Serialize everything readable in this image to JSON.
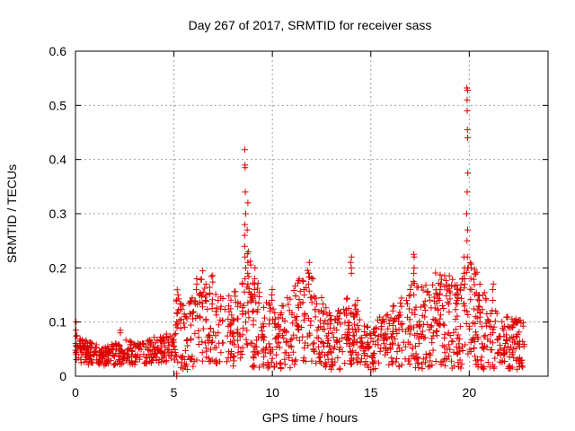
{
  "chart_data": {
    "type": "scatter",
    "title": "Day 267 of 2017, SRMTID for receiver sass",
    "xlabel": "GPS time / hours",
    "ylabel": "SRMTID / TECUs",
    "xlim": [
      0,
      24
    ],
    "ylim": [
      0,
      0.6
    ],
    "xticks": [
      0,
      5,
      10,
      15,
      20
    ],
    "yticks": [
      0,
      0.1,
      0.2,
      0.3,
      0.4,
      0.5,
      0.6
    ],
    "grid": true,
    "marker": "+",
    "color": "#e00000",
    "profile": [
      [
        0,
        0.05
      ],
      [
        0.5,
        0.045
      ],
      [
        1,
        0.04
      ],
      [
        1.5,
        0.038
      ],
      [
        2,
        0.04
      ],
      [
        2.5,
        0.045
      ],
      [
        3,
        0.042
      ],
      [
        3.5,
        0.045
      ],
      [
        4,
        0.048
      ],
      [
        4.5,
        0.05
      ],
      [
        4.9,
        0.06
      ],
      [
        5.2,
        0.09
      ],
      [
        5.6,
        0.07
      ],
      [
        6,
        0.08
      ],
      [
        6.5,
        0.11
      ],
      [
        7,
        0.1
      ],
      [
        7.5,
        0.08
      ],
      [
        8,
        0.085
      ],
      [
        8.4,
        0.1
      ],
      [
        8.7,
        0.13
      ],
      [
        9,
        0.11
      ],
      [
        9.5,
        0.08
      ],
      [
        10,
        0.07
      ],
      [
        10.5,
        0.075
      ],
      [
        11,
        0.09
      ],
      [
        11.5,
        0.1
      ],
      [
        12,
        0.11
      ],
      [
        12.5,
        0.08
      ],
      [
        13,
        0.06
      ],
      [
        13.5,
        0.07
      ],
      [
        14,
        0.085
      ],
      [
        14.5,
        0.055
      ],
      [
        15,
        0.05
      ],
      [
        15.5,
        0.06
      ],
      [
        16,
        0.07
      ],
      [
        16.5,
        0.08
      ],
      [
        17,
        0.1
      ],
      [
        17.5,
        0.09
      ],
      [
        18,
        0.1
      ],
      [
        18.5,
        0.11
      ],
      [
        19,
        0.1
      ],
      [
        19.5,
        0.09
      ],
      [
        20,
        0.12
      ],
      [
        20.5,
        0.1
      ],
      [
        21,
        0.07
      ],
      [
        21.5,
        0.065
      ],
      [
        22,
        0.06
      ],
      [
        22.8,
        0.055
      ]
    ],
    "spikes": [
      {
        "x": 0.05,
        "ys": [
          0.1,
          0.085,
          0.075
        ]
      },
      {
        "x": 2.3,
        "ys": [
          0.085,
          0.08
        ]
      },
      {
        "x": 5.15,
        "ys": [
          0.0,
          0.005
        ]
      },
      {
        "x": 6.15,
        "ys": [
          0.18,
          0.17,
          0.16
        ]
      },
      {
        "x": 6.6,
        "ys": [
          0.17,
          0.15,
          0.14
        ]
      },
      {
        "x": 8.62,
        "ys": [
          0.418,
          0.39,
          0.385,
          0.34,
          0.3,
          0.28,
          0.26,
          0.24,
          0.22,
          0.2,
          0.18
        ]
      },
      {
        "x": 8.75,
        "ys": [
          0.32,
          0.27,
          0.23,
          0.21,
          0.19,
          0.17
        ]
      },
      {
        "x": 9.1,
        "ys": [
          0.2,
          0.18,
          0.17,
          0.16,
          0.15
        ]
      },
      {
        "x": 10.0,
        "ys": [
          0.16,
          0.15,
          0.14
        ]
      },
      {
        "x": 11.6,
        "ys": [
          0.175,
          0.16,
          0.15
        ]
      },
      {
        "x": 11.85,
        "ys": [
          0.21,
          0.19,
          0.17
        ]
      },
      {
        "x": 14.0,
        "ys": [
          0.22,
          0.21,
          0.2,
          0.19
        ]
      },
      {
        "x": 14.3,
        "ys": [
          0.14,
          0.12
        ]
      },
      {
        "x": 17.2,
        "ys": [
          0.225,
          0.22,
          0.2,
          0.19
        ]
      },
      {
        "x": 17.0,
        "ys": [
          0.16,
          0.15
        ]
      },
      {
        "x": 18.5,
        "ys": [
          0.16,
          0.15,
          0.14
        ]
      },
      {
        "x": 19.9,
        "ys": [
          0.532,
          0.528,
          0.51,
          0.49,
          0.455,
          0.44,
          0.375,
          0.34,
          0.3,
          0.27,
          0.25,
          0.22,
          0.2
        ]
      },
      {
        "x": 19.75,
        "ys": [
          0.22,
          0.2,
          0.19,
          0.17
        ]
      },
      {
        "x": 20.1,
        "ys": [
          0.2,
          0.18,
          0.16
        ]
      },
      {
        "x": 21.2,
        "ys": [
          0.17,
          0.16,
          0.14
        ]
      },
      {
        "x": 22.2,
        "ys": [
          0.1,
          0.09
        ]
      }
    ]
  }
}
